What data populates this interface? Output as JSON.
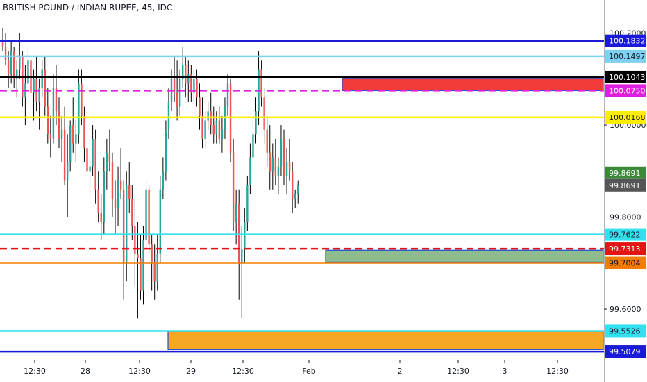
{
  "header": {
    "title": "BRITISH POUND / INDIAN RUPEE, 45, IDC"
  },
  "colors": {
    "up": "#26a69a",
    "down": "#ef5350",
    "grid": "#eef0f3",
    "axis": "#131722",
    "axis_line": "#b2b5be"
  },
  "chart_data": {
    "type": "candlestick",
    "title": "BRITISH POUND / INDIAN RUPEE, 45, IDC",
    "ylim": [
      99.508,
      100.225
    ],
    "y_ticks": [
      "100.2000",
      "100.0000",
      "99.8000",
      "99.6000"
    ],
    "y_tick_values": [
      100.2,
      100.0,
      99.8,
      99.6
    ],
    "x_ticks": [
      "12:30",
      "28",
      "12:30",
      "29",
      "12:30",
      "Feb",
      "2",
      "12:30",
      "3",
      "12:30"
    ],
    "grid": false,
    "horizontal_lines": [
      {
        "label": "100.1832",
        "value": 100.1832,
        "color": "#1a1adb",
        "style": "solid"
      },
      {
        "label": "100.1497",
        "value": 100.1497,
        "color": "#7fd1f2",
        "style": "solid"
      },
      {
        "label": "100.1043",
        "value": 100.1043,
        "color": "#000000",
        "style": "solid"
      },
      {
        "label": "100.0750",
        "value": 100.075,
        "color": "#e020e0",
        "style": "dashed"
      },
      {
        "label": "100.0168",
        "value": 100.0168,
        "color": "#ffee00",
        "style": "solid"
      },
      {
        "label": "99.7622",
        "value": 99.7622,
        "color": "#33e0ee",
        "style": "solid"
      },
      {
        "label": "99.7313",
        "value": 99.7313,
        "color": "#e51414",
        "style": "dashed"
      },
      {
        "label": "99.7004",
        "value": 99.7004,
        "color": "#f57c00",
        "style": "solid"
      },
      {
        "label": "99.5526",
        "value": 99.5526,
        "color": "#33e0ee",
        "style": "solid"
      },
      {
        "label": "99.5079",
        "value": 99.5079,
        "color": "#1a1adb",
        "style": "solid"
      }
    ],
    "last_price_labels": [
      {
        "label": "99.8691",
        "value": 99.8691,
        "color": "#3a8a3a"
      },
      {
        "label": "99.8691",
        "value": 99.8691,
        "color": "#555555"
      }
    ],
    "zones": [
      {
        "top": 100.101,
        "bottom": 100.075,
        "color": "#f23b3b",
        "border": "#1f4fd0"
      },
      {
        "top": 99.728,
        "bottom": 99.702,
        "color": "#8fbc8f",
        "border": "#1f4fd0"
      },
      {
        "top": 99.5526,
        "bottom": 99.512,
        "color": "#f5a623",
        "border": "#1f4fd0"
      }
    ],
    "candles": [
      [
        100.18,
        100.21,
        100.16,
        100.17
      ],
      [
        100.17,
        100.2,
        100.13,
        100.14
      ],
      [
        100.14,
        100.16,
        100.08,
        100.11
      ],
      [
        100.11,
        100.18,
        100.09,
        100.16
      ],
      [
        100.16,
        100.17,
        100.08,
        100.1
      ],
      [
        100.1,
        100.14,
        100.06,
        100.12
      ],
      [
        100.12,
        100.2,
        100.1,
        100.15
      ],
      [
        100.15,
        100.16,
        100.04,
        100.06
      ],
      [
        100.06,
        100.13,
        100.0,
        100.09
      ],
      [
        100.09,
        100.17,
        100.07,
        100.14
      ],
      [
        100.14,
        100.17,
        100.05,
        100.07
      ],
      [
        100.07,
        100.12,
        100.01,
        100.1
      ],
      [
        100.1,
        100.15,
        100.03,
        100.05
      ],
      [
        100.05,
        100.1,
        99.99,
        100.08
      ],
      [
        100.08,
        100.14,
        100.06,
        100.12
      ],
      [
        100.12,
        100.15,
        100.02,
        100.04
      ],
      [
        100.04,
        100.08,
        99.96,
        99.98
      ],
      [
        99.98,
        100.02,
        99.93,
        99.97
      ],
      [
        99.97,
        100.11,
        99.96,
        100.08
      ],
      [
        100.08,
        100.13,
        100.0,
        100.03
      ],
      [
        100.03,
        100.06,
        99.95,
        99.97
      ],
      [
        99.97,
        100.02,
        99.92,
        99.99
      ],
      [
        99.99,
        100.04,
        99.87,
        99.88
      ],
      [
        99.88,
        99.98,
        99.8,
        99.92
      ],
      [
        99.92,
        100.01,
        99.9,
        100.0
      ],
      [
        100.0,
        100.06,
        99.94,
        99.96
      ],
      [
        99.96,
        100.01,
        99.92,
        99.98
      ],
      [
        99.98,
        100.12,
        99.96,
        100.09
      ],
      [
        100.09,
        100.12,
        100.0,
        100.02
      ],
      [
        100.02,
        100.04,
        99.92,
        99.95
      ],
      [
        99.95,
        99.98,
        99.86,
        99.9
      ],
      [
        99.9,
        99.93,
        99.85,
        99.91
      ],
      [
        99.91,
        100.0,
        99.89,
        99.97
      ],
      [
        99.97,
        99.99,
        99.83,
        99.86
      ],
      [
        99.86,
        99.9,
        99.79,
        99.81
      ],
      [
        99.81,
        99.85,
        99.75,
        99.79
      ],
      [
        99.79,
        99.93,
        99.76,
        99.9
      ],
      [
        99.9,
        99.97,
        99.86,
        99.94
      ],
      [
        99.94,
        99.99,
        99.9,
        99.92
      ],
      [
        99.92,
        99.94,
        99.8,
        99.84
      ],
      [
        99.84,
        99.88,
        99.76,
        99.82
      ],
      [
        99.82,
        99.91,
        99.78,
        99.88
      ],
      [
        99.88,
        99.95,
        99.84,
        99.86
      ],
      [
        99.86,
        99.88,
        99.62,
        99.7
      ],
      [
        99.7,
        99.9,
        99.66,
        99.87
      ],
      [
        99.87,
        99.92,
        99.81,
        99.84
      ],
      [
        99.84,
        99.87,
        99.75,
        99.78
      ],
      [
        99.78,
        99.84,
        99.65,
        99.72
      ],
      [
        99.72,
        99.79,
        99.58,
        99.71
      ],
      [
        99.71,
        99.76,
        99.62,
        99.64
      ],
      [
        99.64,
        99.78,
        99.61,
        99.75
      ],
      [
        99.75,
        99.88,
        99.72,
        99.86
      ],
      [
        99.86,
        99.87,
        99.72,
        99.74
      ],
      [
        99.74,
        99.76,
        99.64,
        99.7
      ],
      [
        99.7,
        99.74,
        99.62,
        99.66
      ],
      [
        99.66,
        99.76,
        99.64,
        99.72
      ],
      [
        99.72,
        99.89,
        99.7,
        99.86
      ],
      [
        99.86,
        99.93,
        99.84,
        99.9
      ],
      [
        99.9,
        100.01,
        99.88,
        99.99
      ],
      [
        99.99,
        100.08,
        99.97,
        100.05
      ],
      [
        100.05,
        100.12,
        100.03,
        100.1
      ],
      [
        100.1,
        100.15,
        100.05,
        100.07
      ],
      [
        100.07,
        100.14,
        100.01,
        100.04
      ],
      [
        100.04,
        100.12,
        100.02,
        100.1
      ],
      [
        100.1,
        100.17,
        100.08,
        100.13
      ],
      [
        100.13,
        100.15,
        100.06,
        100.09
      ],
      [
        100.09,
        100.14,
        100.05,
        100.11
      ],
      [
        100.11,
        100.13,
        100.05,
        100.07
      ],
      [
        100.07,
        100.12,
        100.05,
        100.1
      ],
      [
        100.1,
        100.12,
        100.04,
        100.06
      ],
      [
        100.06,
        100.09,
        99.99,
        100.02
      ],
      [
        100.02,
        100.06,
        99.95,
        99.97
      ],
      [
        99.97,
        100.03,
        99.95,
        100.01
      ],
      [
        100.01,
        100.05,
        99.99,
        100.03
      ],
      [
        100.03,
        100.07,
        99.98,
        100.0
      ],
      [
        100.0,
        100.04,
        99.96,
        99.98
      ],
      [
        99.98,
        100.03,
        99.96,
        100.01
      ],
      [
        100.01,
        100.04,
        99.96,
        99.97
      ],
      [
        99.97,
        100.02,
        99.94,
        99.99
      ],
      [
        99.99,
        100.06,
        99.97,
        100.04
      ],
      [
        100.04,
        100.11,
        100.02,
        100.09
      ],
      [
        100.09,
        100.1,
        99.92,
        99.94
      ],
      [
        99.94,
        99.97,
        99.77,
        99.79
      ],
      [
        99.79,
        99.86,
        99.74,
        99.83
      ],
      [
        99.83,
        99.86,
        99.62,
        99.7
      ],
      [
        99.7,
        99.78,
        99.58,
        99.73
      ],
      [
        99.73,
        99.82,
        99.7,
        99.79
      ],
      [
        99.79,
        99.89,
        99.77,
        99.87
      ],
      [
        99.87,
        99.96,
        99.85,
        99.93
      ],
      [
        99.93,
        100.02,
        99.9,
        99.98
      ],
      [
        99.98,
        100.06,
        99.96,
        100.03
      ],
      [
        100.03,
        100.16,
        100.0,
        100.12
      ],
      [
        100.12,
        100.14,
        100.04,
        100.06
      ],
      [
        100.06,
        100.08,
        99.96,
        99.99
      ],
      [
        99.99,
        100.02,
        99.91,
        99.94
      ],
      [
        99.94,
        100.0,
        99.86,
        99.9
      ],
      [
        99.9,
        99.96,
        99.86,
        99.93
      ],
      [
        99.93,
        99.97,
        99.87,
        99.89
      ],
      [
        99.89,
        99.93,
        99.85,
        99.91
      ],
      [
        99.91,
        100.0,
        99.89,
        99.97
      ],
      [
        99.97,
        99.99,
        99.87,
        99.89
      ],
      [
        99.89,
        99.95,
        99.85,
        99.92
      ],
      [
        99.92,
        99.97,
        99.88,
        99.9
      ],
      [
        99.9,
        99.92,
        99.81,
        99.84
      ],
      [
        99.84,
        99.86,
        99.82,
        99.85
      ],
      [
        99.85,
        99.88,
        99.83,
        99.87
      ]
    ]
  }
}
